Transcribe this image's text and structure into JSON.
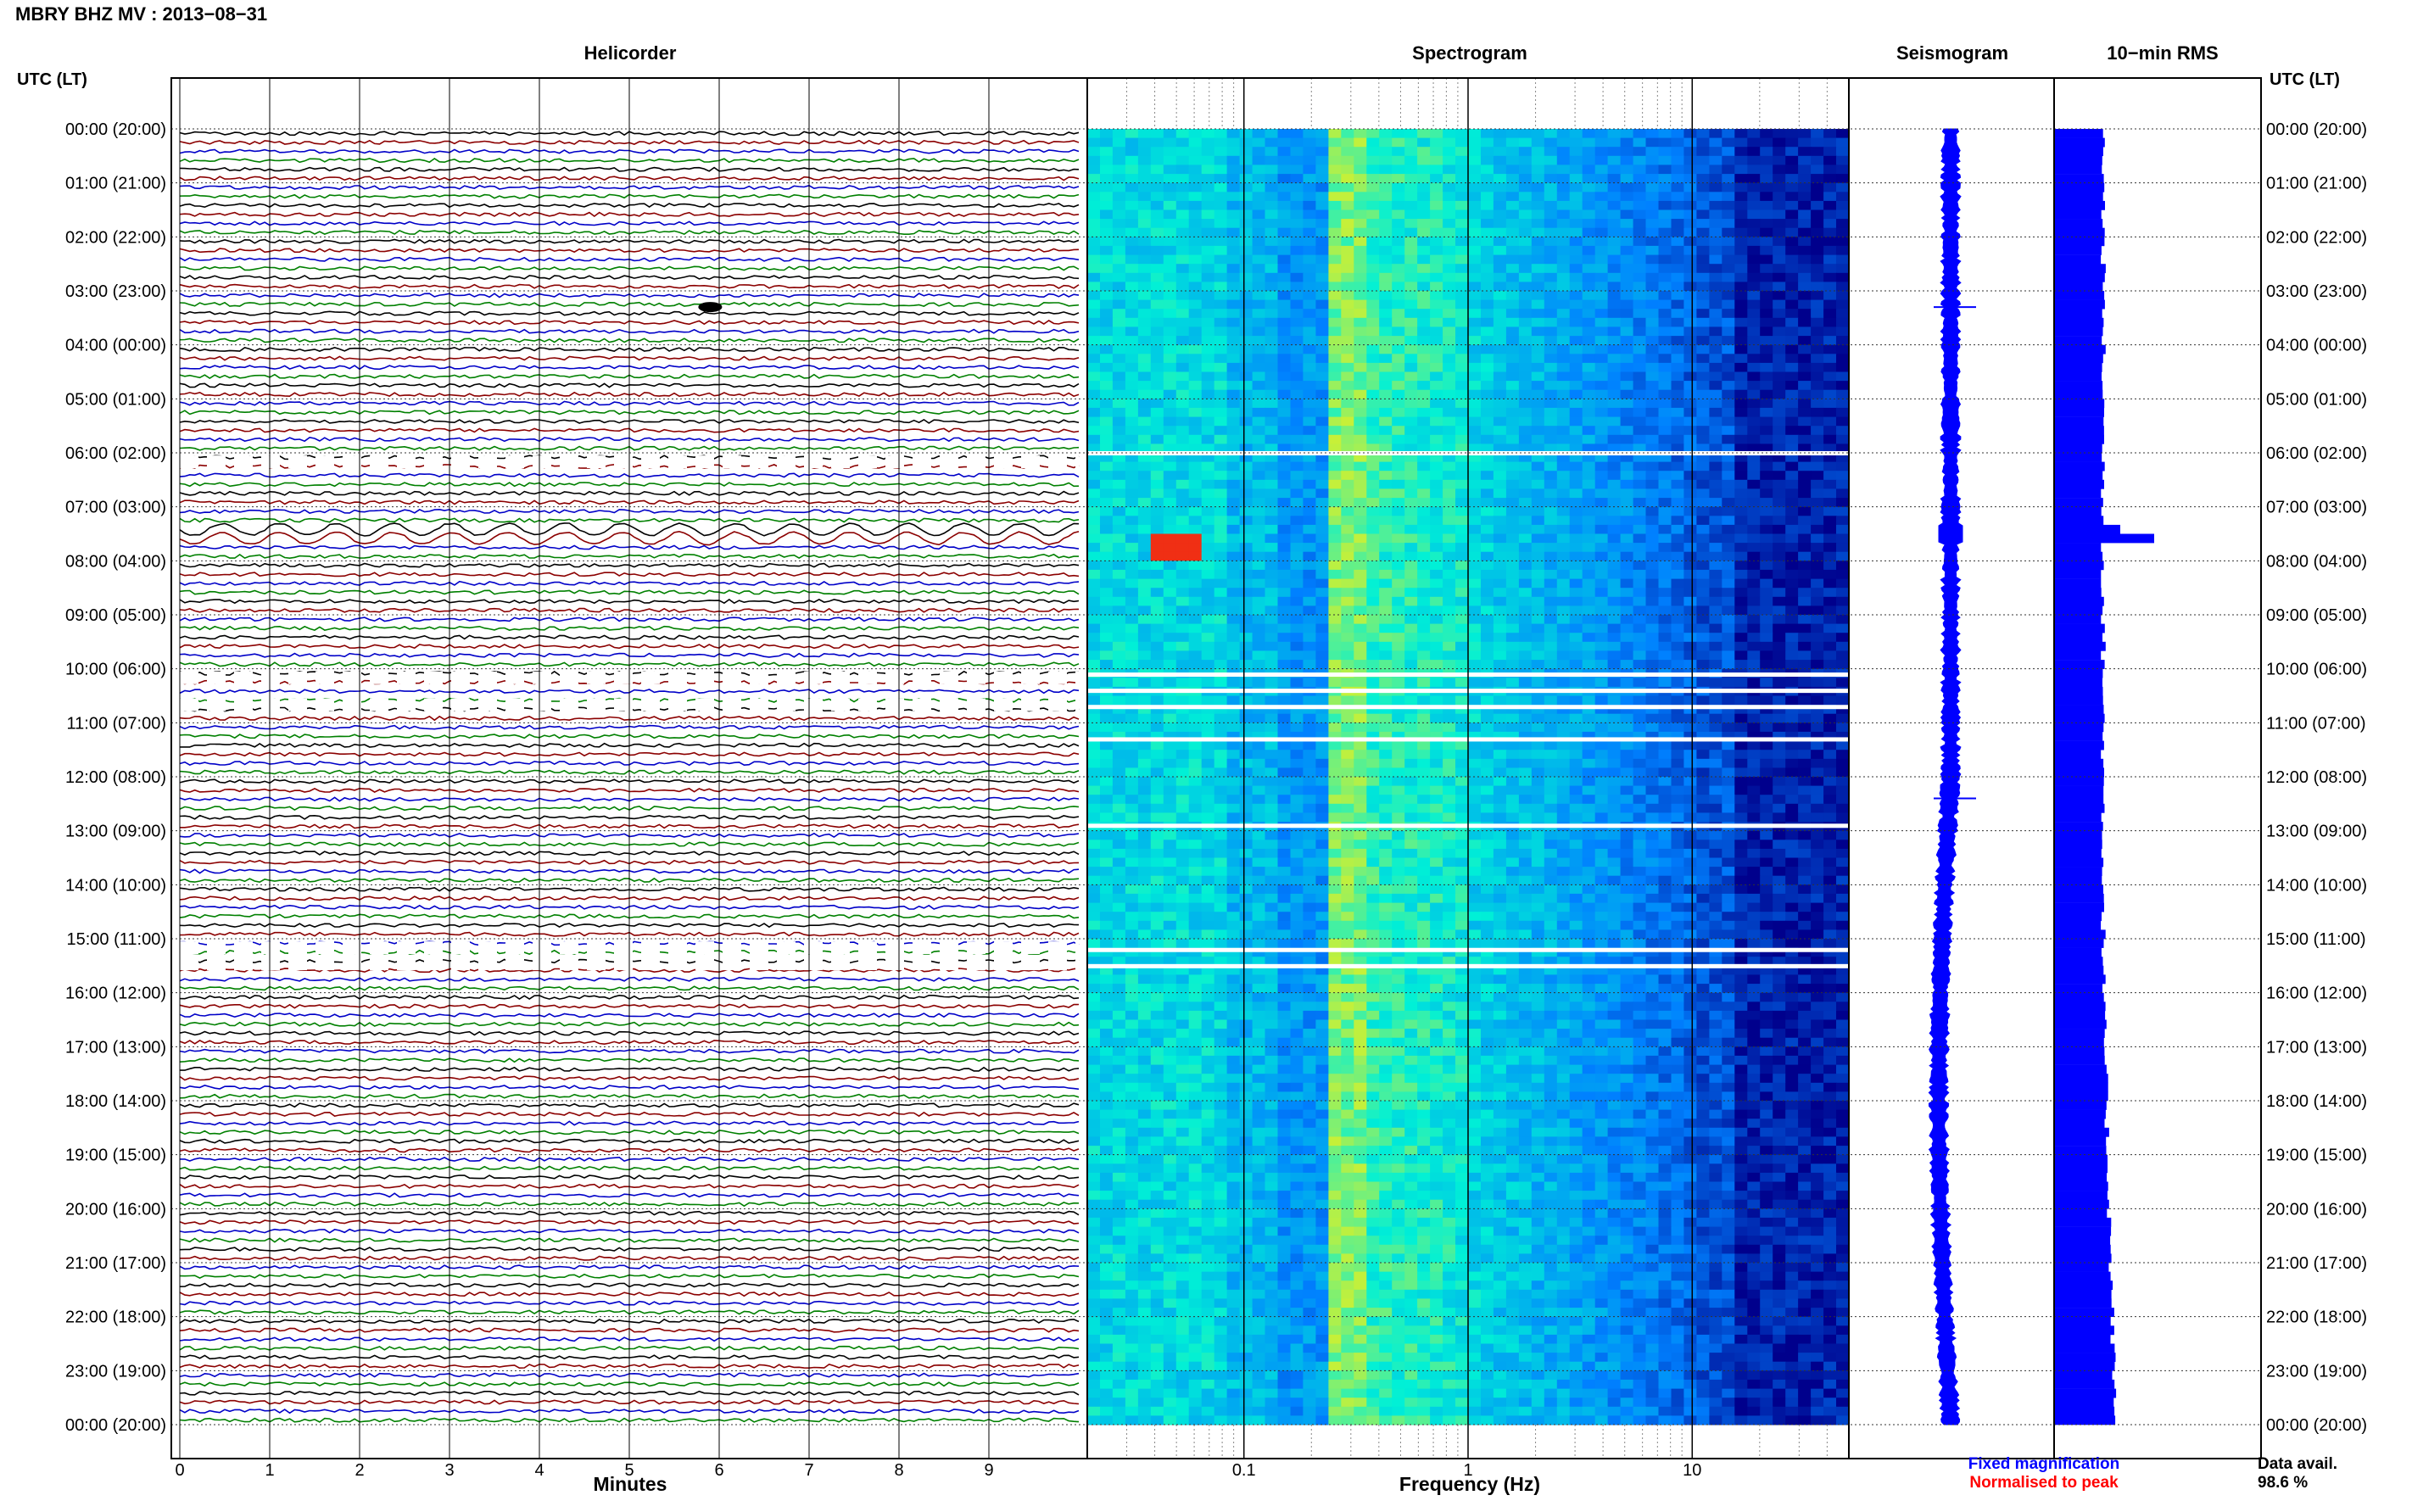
{
  "header": {
    "title": "MBRY BHZ MV : 2013−08−31"
  },
  "panels": {
    "helicorder": "Helicorder",
    "spectrogram": "Spectrogram",
    "seismogram": "Seismogram",
    "rms": "10−min RMS"
  },
  "axis": {
    "time_header": "UTC (LT)",
    "x_label_minutes": "Minutes",
    "x_label_frequency": "Frequency (Hz)"
  },
  "footer": {
    "legend_fixed": "Fixed magnification",
    "legend_normalised": "Normalised to peak",
    "data_avail_label": "Data avail.",
    "data_avail_value": "98.6 %"
  },
  "colors": {
    "trace_cycle": [
      "#000000",
      "#8b0000",
      "#0000c8",
      "#008000"
    ],
    "seismogram": "#0000ff",
    "rms": "#0000ff",
    "legend_fixed": "#0000ff",
    "legend_normalised": "#ff0000"
  },
  "chart_data": [
    {
      "type": "line",
      "title": "Helicorder",
      "xlabel": "Minutes",
      "x_ticks": [
        "0",
        "1",
        "2",
        "3",
        "4",
        "5",
        "6",
        "7",
        "8",
        "9"
      ],
      "xlim": [
        0,
        10
      ],
      "time_labels": [
        "00:00 (20:00)",
        "01:00 (21:00)",
        "02:00 (22:00)",
        "03:00 (23:00)",
        "04:00 (00:00)",
        "05:00 (01:00)",
        "06:00 (02:00)",
        "07:00 (03:00)",
        "08:00 (04:00)",
        "09:00 (05:00)",
        "10:00 (06:00)",
        "11:00 (07:00)",
        "12:00 (08:00)",
        "13:00 (09:00)",
        "14:00 (10:00)",
        "15:00 (11:00)",
        "16:00 (12:00)",
        "17:00 (13:00)",
        "18:00 (14:00)",
        "19:00 (15:00)",
        "20:00 (16:00)",
        "21:00 (17:00)",
        "22:00 (18:00)",
        "23:00 (19:00)",
        "00:00 (20:00)"
      ],
      "rows_per_hour": 6,
      "hours": 24,
      "gaps_hours": [
        6.0,
        10.0,
        10.5,
        15.0,
        15.3
      ],
      "events": [
        {
          "hour": 3.3,
          "minute": 5.9,
          "label": ""
        },
        {
          "hour": 7.5,
          "minute": 0.0,
          "label": ""
        }
      ]
    },
    {
      "type": "heatmap",
      "title": "Spectrogram",
      "xlabel": "Frequency (Hz)",
      "x_scale": "log",
      "xlim": [
        0.02,
        50
      ],
      "x_tick_labels": [
        "0.1",
        "1",
        "10"
      ],
      "x_tick_values": [
        0.1,
        1,
        10
      ],
      "y_range_hours": [
        0,
        24
      ],
      "gap_hours": [
        6.0,
        10.1,
        10.4,
        10.7,
        11.3,
        12.9,
        15.2,
        15.5
      ],
      "hot_spot": {
        "hour": 7.8,
        "freq": 0.05
      }
    },
    {
      "type": "line",
      "title": "Seismogram",
      "legend": [
        "Fixed magnification"
      ]
    },
    {
      "type": "bar",
      "title": "10−min RMS",
      "legend": [
        "Normalised to peak"
      ],
      "peaks": [
        {
          "hour": 7.5,
          "value": 1.0
        }
      ]
    }
  ]
}
